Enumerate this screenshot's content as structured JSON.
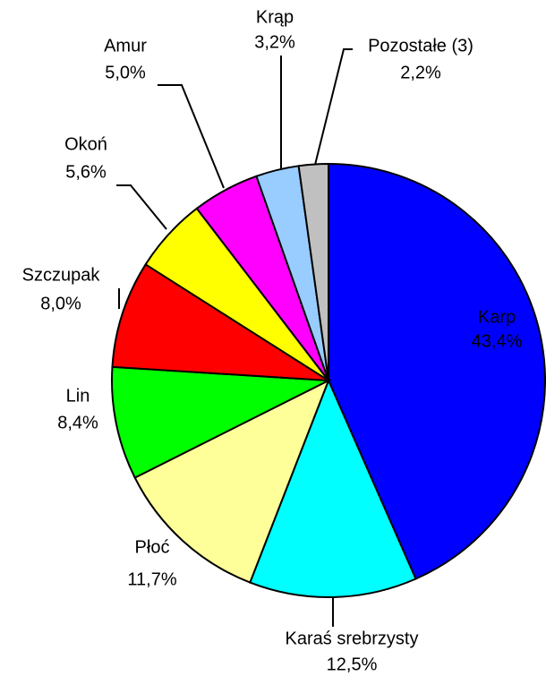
{
  "chart_data": {
    "type": "pie",
    "categories": [
      "Karp",
      "Karaś srebrzysty",
      "Płoć",
      "Lin",
      "Szczupak",
      "Okoń",
      "Amur",
      "Krąp",
      "Pozostałe (3)"
    ],
    "values": [
      43.4,
      12.5,
      11.7,
      8.4,
      8.0,
      5.6,
      5.0,
      3.2,
      2.2
    ],
    "value_labels": [
      "43,4%",
      "12,5%",
      "11,7%",
      "8,4%",
      "8,0%",
      "5,6%",
      "5,0%",
      "3,2%",
      "2,2%"
    ],
    "colors": [
      "#0000ff",
      "#00ffff",
      "#ffff99",
      "#00ff00",
      "#ff0000",
      "#ffff00",
      "#ff00ff",
      "#99ccff",
      "#c0c0c0"
    ]
  }
}
